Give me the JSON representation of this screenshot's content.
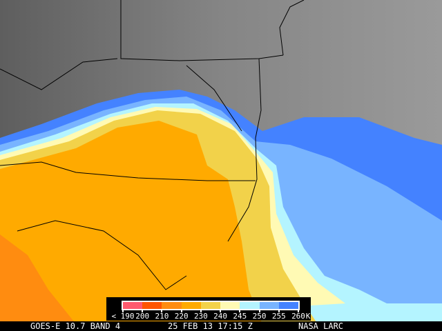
{
  "colorbar": {
    "unit": "K",
    "labels": [
      "< 190",
      "200",
      "210",
      "220",
      "230",
      "240",
      "245",
      "250",
      "255",
      "260"
    ],
    "colors": [
      "#ff5a6e",
      "#ff5500",
      "#ff8c10",
      "#ffaa00",
      "#f2d24a",
      "#fffab4",
      "#b4f4ff",
      "#78b4ff",
      "#4482ff"
    ]
  },
  "footer": {
    "satellite": "GOES-E 10.7 BAND 4",
    "datetime": "25 FEB 13 17:15 Z",
    "source": "NASA LARC"
  }
}
